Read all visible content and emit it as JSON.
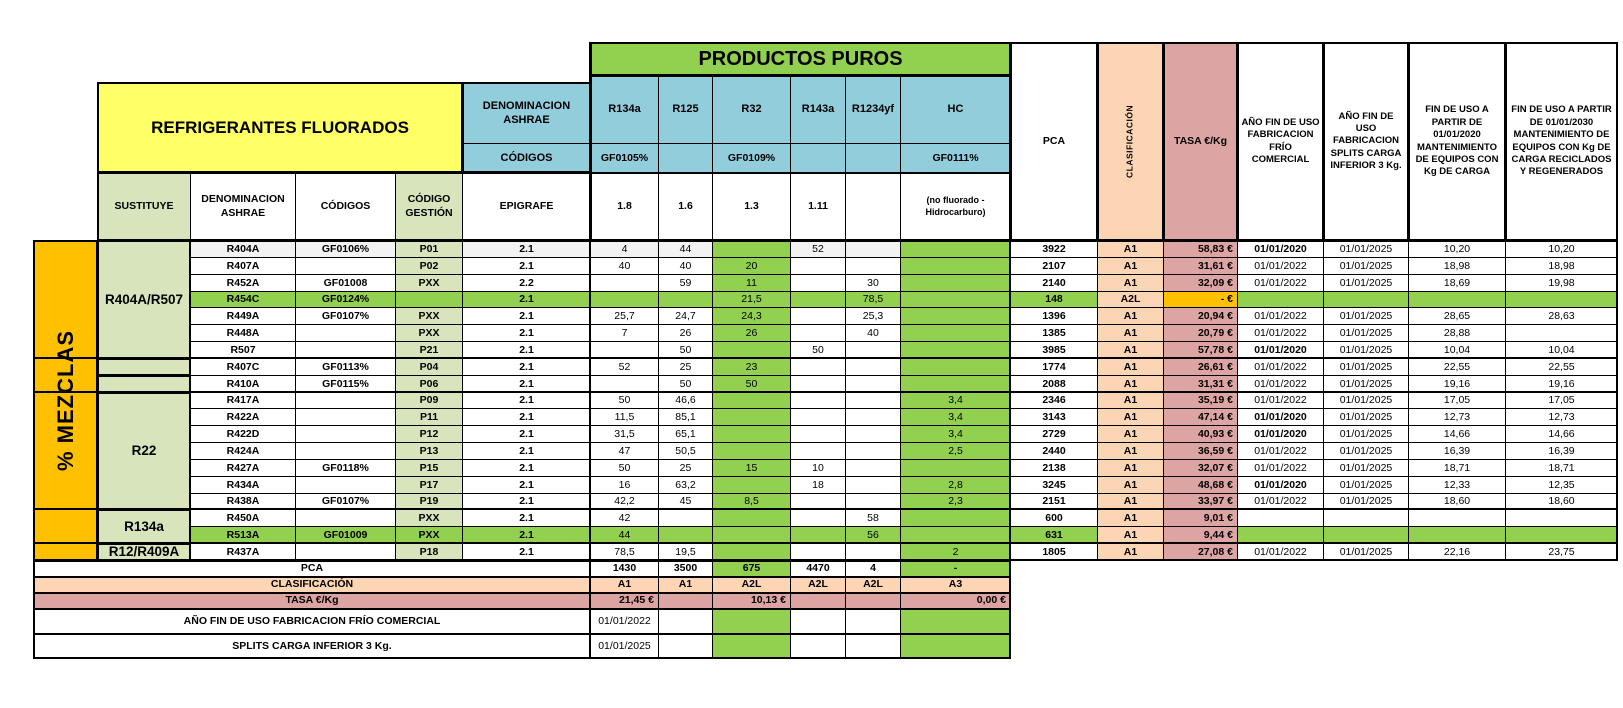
{
  "colors": {
    "green": "#92D050",
    "yellow": "#FFFF66",
    "blue": "#92CDDC",
    "light_green": "#D8E4BC",
    "orange": "#FFC000",
    "peach": "#FCD5B4",
    "pink": "#DCA5A3",
    "shade_row": "#F2F2F2"
  },
  "titles": {
    "productos_puros": "PRODUCTOS PUROS",
    "refrigerantes_fluorados": "REFRIGERANTES FLUORADOS",
    "mezclas": "% MEZCLAS"
  },
  "header": {
    "ashrae_top": "DENOMINACION ASHRAE",
    "codigos_top": "CÓDIGOS",
    "sustituye": "SUSTITUYE",
    "denominacion": "DENOMINACION ASHRAE",
    "codigos": "CÓDIGOS",
    "codigo_gestion": "CÓDIGO GESTIÓN",
    "epigrafe": "EPIGRAFE",
    "pure": [
      {
        "name": "R134a",
        "gf": "GF0105%",
        "epigrafe": "1.8"
      },
      {
        "name": "R125",
        "gf": "",
        "epigrafe": "1.6"
      },
      {
        "name": "R32",
        "gf": "GF0109%",
        "epigrafe": "1.3"
      },
      {
        "name": "R143a",
        "gf": "",
        "epigrafe": "1.11"
      },
      {
        "name": "R1234yf",
        "gf": "",
        "epigrafe": ""
      },
      {
        "name": "HC",
        "gf": "GF0111%",
        "epigrafe": "(no fluorado - Hidrocarburo)"
      }
    ],
    "right": {
      "pca": "PCA",
      "clasificacion": "CLASIFICACIÓN",
      "tasa": "TASA €/Kg",
      "fin_frio": "AÑO FIN DE USO FABRICACION FRÍO COMERCIAL",
      "fin_splits": "AÑO FIN DE USO FABRICACION SPLITS CARGA INFERIOR 3 Kg.",
      "fin_2020": "FIN DE USO A PARTIR DE 01/01/2020 MANTENIMIENTO DE EQUIPOS CON Kg DE CARGA",
      "fin_2030": "FIN DE USO A PARTIR DE 01/01/2030 MANTENIMIENTO DE EQUIPOS CON Kg DE CARGA RECICLADOS Y REGENERADOS"
    }
  },
  "groups": [
    {
      "label": "R404A/R507",
      "start": 0,
      "span": 7
    },
    {
      "label": "",
      "start": 7,
      "span": 1
    },
    {
      "label": "",
      "start": 8,
      "span": 1
    },
    {
      "label": "R22",
      "start": 9,
      "span": 7
    },
    {
      "label": "R134a",
      "start": 16,
      "span": 2
    },
    {
      "label": "R12/R409A",
      "start": 18,
      "span": 1
    }
  ],
  "rows": [
    {
      "denom": "R404A",
      "cod": "GF0106%",
      "gest": "P01",
      "epi": "2.1",
      "r134a": "4",
      "r125": "44",
      "r32": "",
      "r143a": "52",
      "r1234yf": "",
      "hc": "",
      "pca": "3922",
      "clasif": "A1",
      "tasa": "58,83 €",
      "frio": "01/01/2020",
      "splits": "01/01/2025",
      "fin2020": "10,20",
      "fin2030": "10,20",
      "shade": true
    },
    {
      "denom": "R407A",
      "cod": "",
      "gest": "P02",
      "epi": "2.1",
      "r134a": "40",
      "r125": "40",
      "r32": "20",
      "r143a": "",
      "r1234yf": "",
      "hc": "",
      "pca": "2107",
      "clasif": "A1",
      "tasa": "31,61 €",
      "frio": "01/01/2022",
      "splits": "01/01/2025",
      "fin2020": "18,98",
      "fin2030": "18,98"
    },
    {
      "denom": "R452A",
      "cod": "GF01008",
      "gest": "PXX",
      "epi": "2.2",
      "r134a": "",
      "r125": "59",
      "r32": "11",
      "r143a": "",
      "r1234yf": "30",
      "hc": "",
      "pca": "2140",
      "clasif": "A1",
      "tasa": "32,09 €",
      "frio": "01/01/2022",
      "splits": "01/01/2025",
      "fin2020": "18,69",
      "fin2030": "19,98"
    },
    {
      "denom": "R454C",
      "cod": "GF0124%",
      "gest": "",
      "epi": "2.1",
      "r134a": "",
      "r125": "",
      "r32": "21,5",
      "r143a": "",
      "r1234yf": "78,5",
      "hc": "",
      "pca": "148",
      "clasif": "A2L",
      "tasa": "- €",
      "frio": "",
      "splits": "",
      "fin2020": "",
      "fin2030": "",
      "highlight": true
    },
    {
      "denom": "R449A",
      "cod": "GF0107%",
      "gest": "PXX",
      "epi": "2.1",
      "r134a": "25,7",
      "r125": "24,7",
      "r32": "24,3",
      "r143a": "",
      "r1234yf": "25,3",
      "hc": "",
      "pca": "1396",
      "clasif": "A1",
      "tasa": "20,94 €",
      "frio": "01/01/2022",
      "splits": "01/01/2025",
      "fin2020": "28,65",
      "fin2030": "28,63"
    },
    {
      "denom": "R448A",
      "cod": "",
      "gest": "PXX",
      "epi": "2.1",
      "r134a": "7",
      "r125": "26",
      "r32": "26",
      "r143a": "",
      "r1234yf": "40",
      "hc": "",
      "pca": "1385",
      "clasif": "A1",
      "tasa": "20,79 €",
      "frio": "01/01/2022",
      "splits": "01/01/2025",
      "fin2020": "28,88",
      "fin2030": ""
    },
    {
      "denom": "R507",
      "cod": "",
      "gest": "P21",
      "epi": "2.1",
      "r134a": "",
      "r125": "50",
      "r32": "",
      "r143a": "50",
      "r1234yf": "",
      "hc": "",
      "pca": "3985",
      "clasif": "A1",
      "tasa": "57,78 €",
      "frio": "01/01/2020",
      "splits": "01/01/2025",
      "fin2020": "10,04",
      "fin2030": "10,04"
    },
    {
      "denom": "R407C",
      "cod": "GF0113%",
      "gest": "P04",
      "epi": "2.1",
      "r134a": "52",
      "r125": "25",
      "r32": "23",
      "r143a": "",
      "r1234yf": "",
      "hc": "",
      "pca": "1774",
      "clasif": "A1",
      "tasa": "26,61 €",
      "frio": "01/01/2022",
      "splits": "01/01/2025",
      "fin2020": "22,55",
      "fin2030": "22,55"
    },
    {
      "denom": "R410A",
      "cod": "GF0115%",
      "gest": "P06",
      "epi": "2.1",
      "r134a": "",
      "r125": "50",
      "r32": "50",
      "r143a": "",
      "r1234yf": "",
      "hc": "",
      "pca": "2088",
      "clasif": "A1",
      "tasa": "31,31 €",
      "frio": "01/01/2022",
      "splits": "01/01/2025",
      "fin2020": "19,16",
      "fin2030": "19,16"
    },
    {
      "denom": "R417A",
      "cod": "",
      "gest": "P09",
      "epi": "2.1",
      "r134a": "50",
      "r125": "46,6",
      "r32": "",
      "r143a": "",
      "r1234yf": "",
      "hc": "3,4",
      "pca": "2346",
      "clasif": "A1",
      "tasa": "35,19 €",
      "frio": "01/01/2022",
      "splits": "01/01/2025",
      "fin2020": "17,05",
      "fin2030": "17,05"
    },
    {
      "denom": "R422A",
      "cod": "",
      "gest": "P11",
      "epi": "2.1",
      "r134a": "11,5",
      "r125": "85,1",
      "r32": "",
      "r143a": "",
      "r1234yf": "",
      "hc": "3,4",
      "pca": "3143",
      "clasif": "A1",
      "tasa": "47,14 €",
      "frio": "01/01/2020",
      "splits": "01/01/2025",
      "fin2020": "12,73",
      "fin2030": "12,73"
    },
    {
      "denom": "R422D",
      "cod": "",
      "gest": "P12",
      "epi": "2.1",
      "r134a": "31,5",
      "r125": "65,1",
      "r32": "",
      "r143a": "",
      "r1234yf": "",
      "hc": "3,4",
      "pca": "2729",
      "clasif": "A1",
      "tasa": "40,93 €",
      "frio": "01/01/2020",
      "splits": "01/01/2025",
      "fin2020": "14,66",
      "fin2030": "14,66"
    },
    {
      "denom": "R424A",
      "cod": "",
      "gest": "P13",
      "epi": "2.1",
      "r134a": "47",
      "r125": "50,5",
      "r32": "",
      "r143a": "",
      "r1234yf": "",
      "hc": "2,5",
      "pca": "2440",
      "clasif": "A1",
      "tasa": "36,59 €",
      "frio": "01/01/2022",
      "splits": "01/01/2025",
      "fin2020": "16,39",
      "fin2030": "16,39"
    },
    {
      "denom": "R427A",
      "cod": "GF0118%",
      "gest": "P15",
      "epi": "2.1",
      "r134a": "50",
      "r125": "25",
      "r32": "15",
      "r143a": "10",
      "r1234yf": "",
      "hc": "",
      "pca": "2138",
      "clasif": "A1",
      "tasa": "32,07 €",
      "frio": "01/01/2022",
      "splits": "01/01/2025",
      "fin2020": "18,71",
      "fin2030": "18,71"
    },
    {
      "denom": "R434A",
      "cod": "",
      "gest": "P17",
      "epi": "2.1",
      "r134a": "16",
      "r125": "63,2",
      "r32": "",
      "r143a": "18",
      "r1234yf": "",
      "hc": "2,8",
      "pca": "3245",
      "clasif": "A1",
      "tasa": "48,68 €",
      "frio": "01/01/2020",
      "splits": "01/01/2025",
      "fin2020": "12,33",
      "fin2030": "12,35"
    },
    {
      "denom": "R438A",
      "cod": "GF0107%",
      "gest": "P19",
      "epi": "2.1",
      "r134a": "42,2",
      "r125": "45",
      "r32": "8,5",
      "r143a": "",
      "r1234yf": "",
      "hc": "2,3",
      "pca": "2151",
      "clasif": "A1",
      "tasa": "33,97 €",
      "frio": "01/01/2022",
      "splits": "01/01/2025",
      "fin2020": "18,60",
      "fin2030": "18,60"
    },
    {
      "denom": "R450A",
      "cod": "",
      "gest": "PXX",
      "epi": "2.1",
      "r134a": "42",
      "r125": "",
      "r32": "",
      "r143a": "",
      "r1234yf": "58",
      "hc": "",
      "pca": "600",
      "clasif": "A1",
      "tasa": "9,01 €",
      "frio": "",
      "splits": "",
      "fin2020": "",
      "fin2030": ""
    },
    {
      "denom": "R513A",
      "cod": "GF01009",
      "gest": "PXX",
      "epi": "2.1",
      "r134a": "44",
      "r125": "",
      "r32": "",
      "r143a": "",
      "r1234yf": "56",
      "hc": "",
      "pca": "631",
      "clasif": "A1",
      "tasa": "9,44 €",
      "frio": "",
      "splits": "",
      "fin2020": "",
      "fin2030": "",
      "highlight": true
    },
    {
      "denom": "R437A",
      "cod": "",
      "gest": "P18",
      "epi": "2.1",
      "r134a": "78,5",
      "r125": "19,5",
      "r32": "",
      "r143a": "",
      "r1234yf": "",
      "hc": "2",
      "pca": "1805",
      "clasif": "A1",
      "tasa": "27,08 €",
      "frio": "01/01/2022",
      "splits": "01/01/2025",
      "fin2020": "22,16",
      "fin2030": "23,75"
    }
  ],
  "footer": {
    "rows": [
      {
        "label": "PCA",
        "values": [
          "1430",
          "3500",
          "675",
          "4470",
          "4",
          "-"
        ]
      },
      {
        "label": "CLASIFICACIÓN",
        "values": [
          "A1",
          "A1",
          "A2L",
          "A2L",
          "A2L",
          "A3"
        ]
      },
      {
        "label": "TASA €/Kg",
        "values": [
          "21,45 €",
          "",
          "10,13 €",
          "",
          "",
          "0,00 €"
        ]
      },
      {
        "label": "AÑO FIN DE USO FABRICACION FRÍO COMERCIAL",
        "values": [
          "01/01/2022",
          "",
          "",
          "",
          "",
          ""
        ]
      },
      {
        "label": "SPLITS CARGA INFERIOR 3 Kg.",
        "values": [
          "01/01/2025",
          "",
          "",
          "",
          "",
          ""
        ]
      }
    ]
  }
}
